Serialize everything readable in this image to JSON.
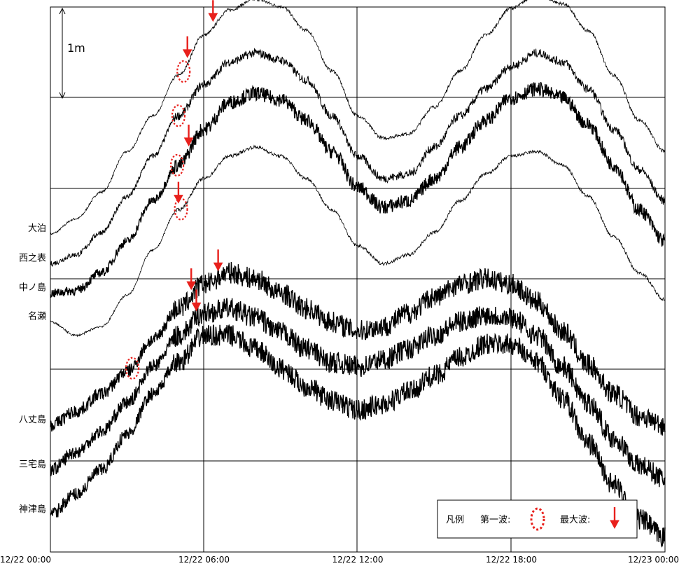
{
  "chart_data": {
    "type": "line",
    "x_axis": {
      "ticks": [
        "12/22 00:00",
        "12/22 06:00",
        "12/22 12:00",
        "12/22 18:00",
        "12/23 00:00"
      ],
      "range_hours": [
        0,
        24
      ]
    },
    "scale_bar": {
      "label": "1m",
      "meters": 1
    },
    "series": [
      {
        "name": "大泊",
        "noise": "low",
        "x": [
          0,
          1,
          2,
          3,
          4,
          5,
          6,
          7,
          8,
          9,
          10,
          11,
          12,
          13,
          14,
          15,
          16,
          17,
          18,
          19,
          20,
          21,
          22,
          23,
          24
        ],
        "y": [
          -1.22,
          -1.05,
          -0.75,
          -0.3,
          0.1,
          0.55,
          1.0,
          1.28,
          1.4,
          1.32,
          1.05,
          0.6,
          0.1,
          -0.15,
          -0.1,
          0.2,
          0.6,
          1.0,
          1.3,
          1.45,
          1.35,
          1.05,
          0.55,
          0.05,
          -0.3
        ]
      },
      {
        "name": "西之表",
        "noise": "medium",
        "x": [
          0,
          1,
          2,
          3,
          4,
          5,
          6,
          7,
          8,
          9,
          10,
          11,
          12,
          13,
          14,
          15,
          16,
          17,
          18,
          19,
          20,
          21,
          22,
          23,
          24
        ],
        "y": [
          -1.55,
          -1.45,
          -1.2,
          -0.8,
          -0.35,
          0.1,
          0.45,
          0.7,
          0.8,
          0.72,
          0.5,
          0.1,
          -0.35,
          -0.6,
          -0.55,
          -0.25,
          0.1,
          0.4,
          0.65,
          0.8,
          0.7,
          0.4,
          -0.05,
          -0.5,
          -0.85
        ]
      },
      {
        "name": "中ノ島",
        "noise": "high",
        "x": [
          0,
          1,
          2,
          3,
          4,
          5,
          6,
          7,
          8,
          9,
          10,
          11,
          12,
          13,
          14,
          15,
          16,
          17,
          18,
          19,
          20,
          21,
          22,
          23,
          24
        ],
        "y": [
          -1.88,
          -1.85,
          -1.65,
          -1.3,
          -0.85,
          -0.45,
          -0.05,
          0.25,
          0.35,
          0.28,
          0.05,
          -0.3,
          -0.7,
          -0.92,
          -0.85,
          -0.6,
          -0.25,
          0.05,
          0.3,
          0.4,
          0.3,
          0.0,
          -0.45,
          -0.95,
          -1.3
        ]
      },
      {
        "name": "名瀬",
        "noise": "low",
        "x": [
          0,
          1,
          2,
          3,
          4,
          5,
          6,
          7,
          8,
          9,
          10,
          11,
          12,
          13,
          14,
          15,
          16,
          17,
          18,
          19,
          20,
          21,
          22,
          23,
          24
        ],
        "y": [
          -2.2,
          -2.35,
          -2.25,
          -1.9,
          -1.4,
          -0.95,
          -0.6,
          -0.35,
          -0.25,
          -0.35,
          -0.6,
          -0.95,
          -1.35,
          -1.55,
          -1.45,
          -1.2,
          -0.85,
          -0.55,
          -0.35,
          -0.3,
          -0.45,
          -0.8,
          -1.25,
          -1.65,
          -1.95
        ]
      },
      {
        "name": "八丈島",
        "noise": "very-high",
        "x": [
          0,
          1,
          2,
          3,
          4,
          5,
          6,
          7,
          8,
          9,
          10,
          11,
          12,
          13,
          14,
          15,
          16,
          17,
          18,
          19,
          20,
          21,
          22,
          23,
          24
        ],
        "y": [
          -3.35,
          -3.2,
          -3.0,
          -2.75,
          -2.4,
          -2.05,
          -1.78,
          -1.65,
          -1.72,
          -1.88,
          -2.05,
          -2.2,
          -2.3,
          -2.25,
          -2.1,
          -1.92,
          -1.78,
          -1.72,
          -1.78,
          -1.98,
          -2.3,
          -2.68,
          -3.0,
          -3.25,
          -3.35
        ]
      },
      {
        "name": "三宅島",
        "noise": "very-high",
        "x": [
          0,
          1,
          2,
          3,
          4,
          5,
          6,
          7,
          8,
          9,
          10,
          11,
          12,
          13,
          14,
          15,
          16,
          17,
          18,
          19,
          20,
          21,
          22,
          23,
          24
        ],
        "y": [
          -3.85,
          -3.65,
          -3.42,
          -3.1,
          -2.7,
          -2.35,
          -2.1,
          -2.05,
          -2.15,
          -2.32,
          -2.5,
          -2.65,
          -2.7,
          -2.62,
          -2.5,
          -2.35,
          -2.2,
          -2.12,
          -2.15,
          -2.35,
          -2.7,
          -3.1,
          -3.5,
          -3.8,
          -3.95
        ]
      },
      {
        "name": "神津島",
        "noise": "very-high",
        "x": [
          0,
          1,
          2,
          3,
          4,
          5,
          6,
          7,
          8,
          9,
          10,
          11,
          12,
          13,
          14,
          15,
          16,
          17,
          18,
          19,
          20,
          21,
          22,
          23,
          24
        ],
        "y": [
          -4.35,
          -4.12,
          -3.85,
          -3.45,
          -3.0,
          -2.65,
          -2.35,
          -2.35,
          -2.5,
          -2.72,
          -2.92,
          -3.08,
          -3.18,
          -3.12,
          -2.98,
          -2.8,
          -2.6,
          -2.45,
          -2.45,
          -2.65,
          -3.05,
          -3.55,
          -4.02,
          -4.4,
          -4.6
        ]
      }
    ],
    "first_wave_markers": [
      {
        "series": "大泊",
        "x": 5.2
      },
      {
        "series": "西之表",
        "x": 5.0
      },
      {
        "series": "中ノ島",
        "x": 4.95
      },
      {
        "series": "名瀬",
        "x": 5.1
      },
      {
        "series": "八丈島",
        "x": 3.2
      }
    ],
    "max_wave_markers": [
      {
        "series": "大泊",
        "x": 5.35
      },
      {
        "series": "大泊",
        "x": 6.35
      },
      {
        "series": "中ノ島",
        "x": 5.4
      },
      {
        "series": "名瀬",
        "x": 5.0
      },
      {
        "series": "八丈島",
        "x": 5.5
      },
      {
        "series": "八丈島",
        "x": 6.55
      },
      {
        "series": "三宅島",
        "x": 5.7
      }
    ],
    "legend": {
      "title": "凡例",
      "first_wave": "第一波:",
      "max_wave": "最大波:"
    },
    "grid": true
  },
  "colors": {
    "line": "#000000",
    "grid": "#000000",
    "marker": "#e8201c"
  }
}
